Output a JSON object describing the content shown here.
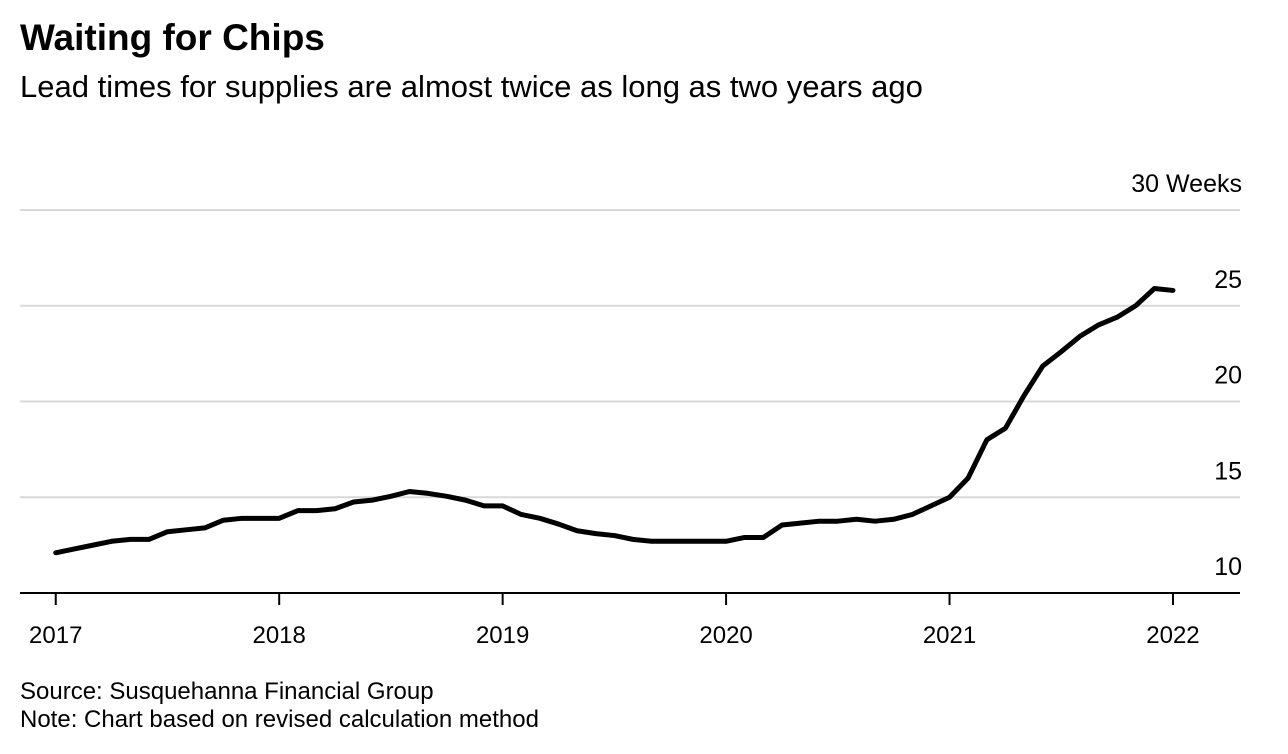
{
  "chart_data": {
    "type": "line",
    "title": "Waiting for Chips",
    "subtitle": "Lead times for supplies are almost twice as long as two years ago",
    "source": "Source: Susquehanna Financial Group",
    "note": "Note: Chart based on revised calculation method",
    "x": [
      2017,
      2017.083,
      2017.167,
      2017.25,
      2017.333,
      2017.417,
      2017.5,
      2017.583,
      2017.667,
      2017.75,
      2017.833,
      2017.917,
      2018,
      2018.083,
      2018.167,
      2018.25,
      2018.333,
      2018.417,
      2018.5,
      2018.583,
      2018.667,
      2018.75,
      2018.833,
      2018.917,
      2019,
      2019.083,
      2019.167,
      2019.25,
      2019.333,
      2019.417,
      2019.5,
      2019.583,
      2019.667,
      2019.75,
      2019.833,
      2019.917,
      2020,
      2020.083,
      2020.167,
      2020.25,
      2020.333,
      2020.417,
      2020.5,
      2020.583,
      2020.667,
      2020.75,
      2020.833,
      2020.917,
      2021,
      2021.083,
      2021.167,
      2021.25,
      2021.333,
      2021.417,
      2021.5,
      2021.583,
      2021.667,
      2021.75,
      2021.833,
      2021.917,
      2022
    ],
    "series": [
      {
        "name": "Lead time",
        "color": "#000000",
        "values": [
          12.1,
          12.3,
          12.5,
          12.7,
          12.8,
          12.8,
          13.2,
          13.3,
          13.4,
          13.8,
          13.9,
          13.9,
          13.9,
          14.3,
          14.3,
          14.4,
          14.75,
          14.85,
          15.05,
          15.3,
          15.2,
          15.05,
          14.85,
          14.55,
          14.55,
          14.1,
          13.9,
          13.6,
          13.25,
          13.1,
          13.0,
          12.8,
          12.7,
          12.7,
          12.7,
          12.7,
          12.7,
          12.9,
          12.9,
          13.55,
          13.65,
          13.75,
          13.75,
          13.85,
          13.75,
          13.85,
          14.1,
          14.55,
          15.0,
          16.0,
          18.0,
          18.6,
          20.3,
          21.85,
          22.6,
          23.4,
          24.0,
          24.4,
          25.0,
          25.9,
          25.8
        ]
      }
    ],
    "xlim": [
      2016.84,
      2022.3
    ],
    "xticks": [
      2017,
      2018,
      2019,
      2020,
      2021,
      2022
    ],
    "ylim": [
      10,
      30
    ],
    "yticks": [
      10,
      15,
      20,
      25,
      {
        "value": 30,
        "label": "30 Weeks"
      }
    ],
    "grid": true
  }
}
